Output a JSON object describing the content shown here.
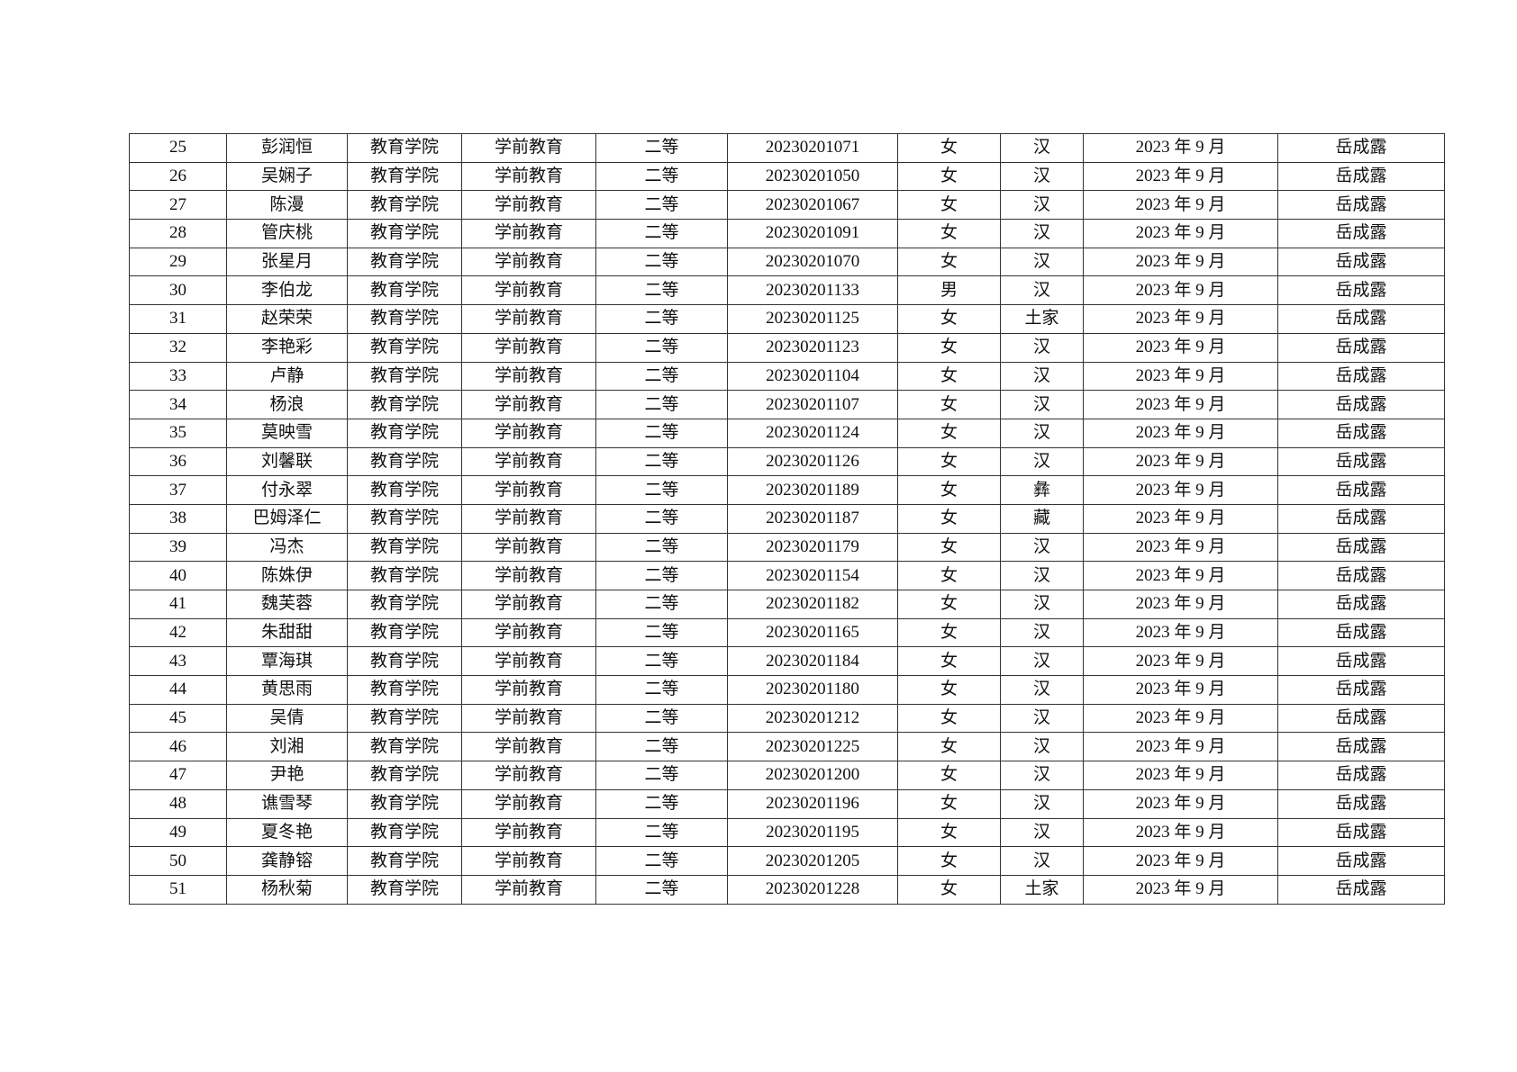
{
  "rows": [
    [
      "25",
      "彭润恒",
      "教育学院",
      "学前教育",
      "二等",
      "20230201071",
      "女",
      "汉",
      "2023 年 9 月",
      "岳成露"
    ],
    [
      "26",
      "吴娴子",
      "教育学院",
      "学前教育",
      "二等",
      "20230201050",
      "女",
      "汉",
      "2023 年 9 月",
      "岳成露"
    ],
    [
      "27",
      "陈漫",
      "教育学院",
      "学前教育",
      "二等",
      "20230201067",
      "女",
      "汉",
      "2023 年 9 月",
      "岳成露"
    ],
    [
      "28",
      "管庆桃",
      "教育学院",
      "学前教育",
      "二等",
      "20230201091",
      "女",
      "汉",
      "2023 年 9 月",
      "岳成露"
    ],
    [
      "29",
      "张星月",
      "教育学院",
      "学前教育",
      "二等",
      "20230201070",
      "女",
      "汉",
      "2023 年 9 月",
      "岳成露"
    ],
    [
      "30",
      "李伯龙",
      "教育学院",
      "学前教育",
      "二等",
      "20230201133",
      "男",
      "汉",
      "2023 年 9 月",
      "岳成露"
    ],
    [
      "31",
      "赵荣荣",
      "教育学院",
      "学前教育",
      "二等",
      "20230201125",
      "女",
      "土家",
      "2023 年 9 月",
      "岳成露"
    ],
    [
      "32",
      "李艳彩",
      "教育学院",
      "学前教育",
      "二等",
      "20230201123",
      "女",
      "汉",
      "2023 年 9 月",
      "岳成露"
    ],
    [
      "33",
      "卢静",
      "教育学院",
      "学前教育",
      "二等",
      "20230201104",
      "女",
      "汉",
      "2023 年 9 月",
      "岳成露"
    ],
    [
      "34",
      "杨浪",
      "教育学院",
      "学前教育",
      "二等",
      "20230201107",
      "女",
      "汉",
      "2023 年 9 月",
      "岳成露"
    ],
    [
      "35",
      "莫映雪",
      "教育学院",
      "学前教育",
      "二等",
      "20230201124",
      "女",
      "汉",
      "2023 年 9 月",
      "岳成露"
    ],
    [
      "36",
      "刘馨联",
      "教育学院",
      "学前教育",
      "二等",
      "20230201126",
      "女",
      "汉",
      "2023 年 9 月",
      "岳成露"
    ],
    [
      "37",
      "付永翠",
      "教育学院",
      "学前教育",
      "二等",
      "20230201189",
      "女",
      "彝",
      "2023 年 9 月",
      "岳成露"
    ],
    [
      "38",
      "巴姆泽仁",
      "教育学院",
      "学前教育",
      "二等",
      "20230201187",
      "女",
      "藏",
      "2023 年 9 月",
      "岳成露"
    ],
    [
      "39",
      "冯杰",
      "教育学院",
      "学前教育",
      "二等",
      "20230201179",
      "女",
      "汉",
      "2023 年 9 月",
      "岳成露"
    ],
    [
      "40",
      "陈姝伊",
      "教育学院",
      "学前教育",
      "二等",
      "20230201154",
      "女",
      "汉",
      "2023 年 9 月",
      "岳成露"
    ],
    [
      "41",
      "魏芙蓉",
      "教育学院",
      "学前教育",
      "二等",
      "20230201182",
      "女",
      "汉",
      "2023 年 9 月",
      "岳成露"
    ],
    [
      "42",
      "朱甜甜",
      "教育学院",
      "学前教育",
      "二等",
      "20230201165",
      "女",
      "汉",
      "2023 年 9 月",
      "岳成露"
    ],
    [
      "43",
      "覃海琪",
      "教育学院",
      "学前教育",
      "二等",
      "20230201184",
      "女",
      "汉",
      "2023 年 9 月",
      "岳成露"
    ],
    [
      "44",
      "黄思雨",
      "教育学院",
      "学前教育",
      "二等",
      "20230201180",
      "女",
      "汉",
      "2023 年 9 月",
      "岳成露"
    ],
    [
      "45",
      "吴倩",
      "教育学院",
      "学前教育",
      "二等",
      "20230201212",
      "女",
      "汉",
      "2023 年 9 月",
      "岳成露"
    ],
    [
      "46",
      "刘湘",
      "教育学院",
      "学前教育",
      "二等",
      "20230201225",
      "女",
      "汉",
      "2023 年 9 月",
      "岳成露"
    ],
    [
      "47",
      "尹艳",
      "教育学院",
      "学前教育",
      "二等",
      "20230201200",
      "女",
      "汉",
      "2023 年 9 月",
      "岳成露"
    ],
    [
      "48",
      "谯雪琴",
      "教育学院",
      "学前教育",
      "二等",
      "20230201196",
      "女",
      "汉",
      "2023 年 9 月",
      "岳成露"
    ],
    [
      "49",
      "夏冬艳",
      "教育学院",
      "学前教育",
      "二等",
      "20230201195",
      "女",
      "汉",
      "2023 年 9 月",
      "岳成露"
    ],
    [
      "50",
      "龚静镕",
      "教育学院",
      "学前教育",
      "二等",
      "20230201205",
      "女",
      "汉",
      "2023 年 9 月",
      "岳成露"
    ],
    [
      "51",
      "杨秋菊",
      "教育学院",
      "学前教育",
      "二等",
      "20230201228",
      "女",
      "土家",
      "2023 年 9 月",
      "岳成露"
    ]
  ]
}
